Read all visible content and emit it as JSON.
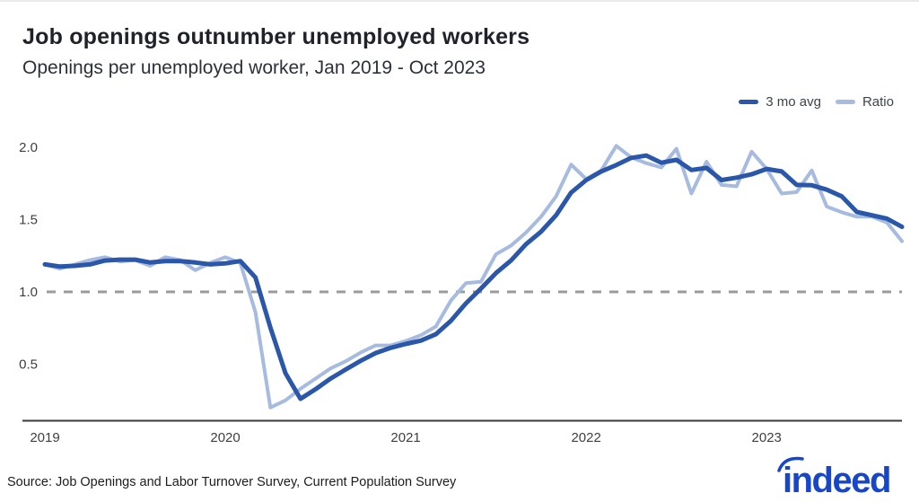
{
  "title": "Job openings outnumber unemployed workers",
  "subtitle": "Openings per unemployed worker, Jan 2019 - Oct 2023",
  "source": "Source: Job Openings and Labor Turnover Survey, Current Population Survey",
  "logo": {
    "text": "indeed",
    "color": "#1646c9"
  },
  "legend": [
    {
      "label": "3 mo avg",
      "color": "#2a57a9"
    },
    {
      "label": "Ratio",
      "color": "#a6bbdf"
    }
  ],
  "chart_data": {
    "type": "line",
    "title": "Job openings outnumber unemployed workers",
    "subtitle": "Openings per unemployed worker, Jan 2019 - Oct 2023",
    "x_start": "2019-01",
    "x_end": "2023-10",
    "x_tick_labels": [
      "2019",
      "2020",
      "2021",
      "2022",
      "2023"
    ],
    "x_tick_month_index": [
      0,
      12,
      24,
      36,
      48
    ],
    "y_ticks": [
      0.5,
      1.0,
      1.5,
      2.0
    ],
    "y_tick_labels": [
      "0.5",
      "1.0",
      "1.5",
      "2.0"
    ],
    "ylim": [
      0.1,
      2.1
    ],
    "reference_line": 1.0,
    "grid": "off",
    "legend_position": "top-right",
    "colors": {
      "reference_dash": "#9b9b9b",
      "axis": "#3a3a3a",
      "tick_text": "#3f3f3f"
    },
    "series": [
      {
        "name": "3 mo avg",
        "color": "#2a57a9",
        "width": 5,
        "values": [
          1.19,
          1.175,
          1.18,
          1.19,
          1.217,
          1.223,
          1.223,
          1.203,
          1.213,
          1.213,
          1.203,
          1.19,
          1.197,
          1.213,
          1.1,
          0.753,
          0.437,
          0.26,
          0.327,
          0.4,
          0.463,
          0.523,
          0.577,
          0.613,
          0.64,
          0.663,
          0.707,
          0.8,
          0.92,
          1.023,
          1.13,
          1.217,
          1.33,
          1.417,
          1.53,
          1.687,
          1.773,
          1.833,
          1.877,
          1.927,
          1.943,
          1.893,
          1.913,
          1.843,
          1.857,
          1.773,
          1.79,
          1.813,
          1.85,
          1.833,
          1.74,
          1.737,
          1.707,
          1.66,
          1.553,
          1.53,
          1.507,
          1.45
        ]
      },
      {
        "name": "Ratio",
        "color": "#a6bbdf",
        "width": 4,
        "values": [
          1.19,
          1.16,
          1.19,
          1.22,
          1.24,
          1.21,
          1.22,
          1.18,
          1.24,
          1.22,
          1.15,
          1.2,
          1.24,
          1.2,
          0.86,
          0.2,
          0.25,
          0.33,
          0.4,
          0.47,
          0.52,
          0.58,
          0.63,
          0.63,
          0.66,
          0.7,
          0.76,
          0.94,
          1.06,
          1.07,
          1.26,
          1.32,
          1.41,
          1.52,
          1.66,
          1.88,
          1.78,
          1.84,
          2.01,
          1.93,
          1.89,
          1.86,
          1.99,
          1.68,
          1.9,
          1.74,
          1.73,
          1.97,
          1.85,
          1.68,
          1.69,
          1.84,
          1.59,
          1.55,
          1.52,
          1.52,
          1.48,
          1.35
        ]
      }
    ]
  }
}
